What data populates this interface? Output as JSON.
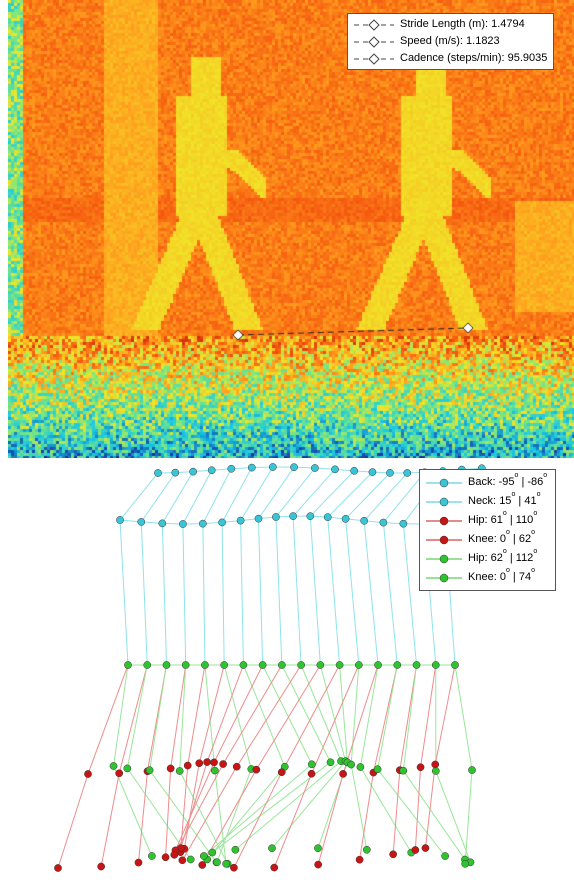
{
  "gait_stats": {
    "stride_length": "Stride Length (m): 1.4794",
    "speed": "Speed (m/s): 1.1823",
    "cadence": "Cadence (steps/min): 95.9035"
  },
  "joint_legend": [
    {
      "joint": "Back:",
      "min": "-95",
      "max": "-86",
      "color": "#39c5d6"
    },
    {
      "joint": "Neck:",
      "min": "15",
      "max": "41",
      "color": "#39c5d6"
    },
    {
      "joint": "Hip:",
      "min": "61",
      "max": "110",
      "color": "#c81414"
    },
    {
      "joint": "Knee:",
      "min": "0",
      "max": "62",
      "color": "#c81414"
    },
    {
      "joint": "Hip:",
      "min": "62",
      "max": "112",
      "color": "#2fc42f"
    },
    {
      "joint": "Knee:",
      "min": "0",
      "max": "74",
      "color": "#2fc42f"
    }
  ],
  "colors": {
    "spine": "#39c5d6",
    "spine_line": "#8ee3ec",
    "left_leg": "#c81414",
    "left_leg_line": "#ee8c8c",
    "right_leg": "#2fc42f",
    "right_leg_line": "#99e699",
    "thermal_hot": "#ffa020",
    "thermal_cold": "#19c9e3"
  },
  "icons": {
    "stride_marker": "diamond-icon",
    "joint_marker": "circle-icon"
  }
}
